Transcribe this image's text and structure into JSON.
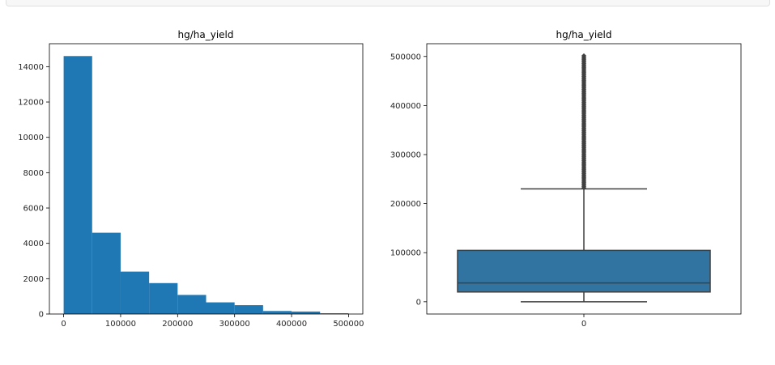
{
  "colors": {
    "bar": "#1f77b4",
    "box": "#3274a1",
    "line": "#3f3f3f",
    "axis": "#000000"
  },
  "chart_data": [
    {
      "type": "bar",
      "title": "hg/ha_yield",
      "bin_edges": [
        0,
        50000,
        100000,
        150000,
        200000,
        250000,
        300000,
        350000,
        400000,
        450000,
        500000
      ],
      "values": [
        14600,
        4600,
        2400,
        1750,
        1080,
        660,
        500,
        170,
        140,
        40
      ],
      "xlim": [
        -25000,
        525000
      ],
      "ylim": [
        0,
        15300
      ],
      "xticks": [
        0,
        100000,
        200000,
        300000,
        400000,
        500000
      ],
      "xtick_labels": [
        "0",
        "100000",
        "200000",
        "300000",
        "400000",
        "500000"
      ],
      "yticks": [
        0,
        2000,
        4000,
        6000,
        8000,
        10000,
        12000,
        14000
      ],
      "ytick_labels": [
        "0",
        "2000",
        "4000",
        "6000",
        "8000",
        "10000",
        "12000",
        "14000"
      ]
    },
    {
      "type": "box",
      "title": "hg/ha_yield",
      "category_labels": [
        "0"
      ],
      "whisker_low": 50,
      "q1": 19900,
      "median": 38300,
      "q3": 104700,
      "whisker_high": 230000,
      "outliers_range": [
        230000,
        501400
      ],
      "ylim": [
        -25000,
        526000
      ],
      "yticks": [
        0,
        100000,
        200000,
        300000,
        400000,
        500000
      ],
      "ytick_labels": [
        "0",
        "100000",
        "200000",
        "300000",
        "400000",
        "500000"
      ]
    }
  ]
}
